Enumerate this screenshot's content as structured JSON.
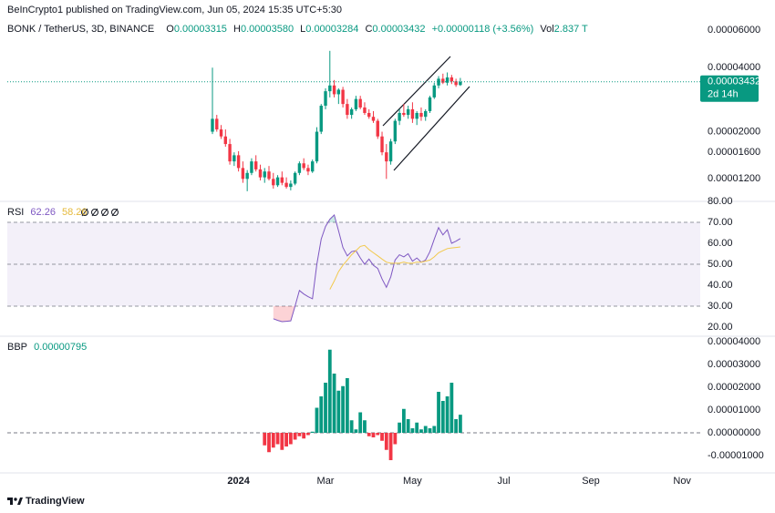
{
  "header": "BeInCrypto1 published on TradingView.com, Jun 05, 2024 15:35 UTC+5:30",
  "footer": "TradingView",
  "chart_data": [
    {
      "type": "candlestick",
      "symbol": "BONK / TetherUS, 3D, BINANCE",
      "ohlc_labels": [
        "O",
        "H",
        "L",
        "C"
      ],
      "ohlc_value_labels": [
        "0.00003315",
        "0.00003580",
        "0.00003284",
        "0.00003432"
      ],
      "change": "+0.00000118 (+3.56%)",
      "volume_label": "Vol",
      "volume": "2.837 T",
      "countdown": "2d 14h",
      "categories": [
        null,
        null,
        null,
        null,
        null,
        null,
        "2024",
        null,
        null,
        null,
        null,
        null,
        null,
        null,
        null,
        null,
        null,
        null,
        null,
        null,
        null,
        null,
        null,
        null,
        null,
        null,
        "Mar",
        null,
        null,
        null,
        null,
        null,
        null,
        null,
        null,
        null,
        null,
        null,
        null,
        null,
        null,
        null,
        null,
        null,
        null,
        null,
        "May",
        null,
        null,
        null,
        null,
        null,
        null,
        null,
        null,
        null,
        null,
        null,
        null,
        null,
        null,
        null,
        null,
        null,
        null,
        null,
        null,
        "Jul",
        null,
        null,
        null,
        null,
        null,
        null,
        null,
        null,
        null,
        null,
        null,
        null,
        null,
        null,
        null,
        null,
        null,
        null,
        null,
        "Sep",
        null,
        null,
        null,
        null,
        null,
        null,
        null,
        null,
        null,
        null,
        null,
        null,
        null,
        null,
        null,
        null,
        null,
        null,
        null,
        null,
        "Nov",
        null,
        null,
        null
      ],
      "open": [
        2e-05,
        2.3e-05,
        2.05e-05,
        1.9e-05,
        1.75e-05,
        1.45e-05,
        1.55e-05,
        1.35e-05,
        1.2e-05,
        1.28e-05,
        1.45e-05,
        1.33e-05,
        1.22e-05,
        1.3e-05,
        1.2e-05,
        1.12e-05,
        1.22e-05,
        1.15e-05,
        1.1e-05,
        1.14e-05,
        1.28e-05,
        1.42e-05,
        1.35e-05,
        1.3e-05,
        1.45e-05,
        2e-05,
        2.65e-05,
        3.1e-05,
        3.3e-05,
        3e-05,
        3.15e-05,
        2.7e-05,
        2.4e-05,
        2.55e-05,
        2.85e-05,
        2.6e-05,
        2.45e-05,
        2.35e-05,
        2.25e-05,
        1.9e-05,
        1.6e-05,
        1.45e-05,
        1.8e-05,
        2.25e-05,
        2.45e-05,
        2.4e-05,
        2.55e-05,
        2.3e-05,
        2.45e-05,
        2.35e-05,
        2.5e-05,
        2.9e-05,
        3.3e-05,
        3.55e-05,
        3.4e-05,
        3.6e-05,
        3.45e-05,
        3.315e-05,
        null,
        null,
        null,
        null,
        null,
        null,
        null,
        null,
        null,
        null,
        null,
        null,
        null,
        null,
        null,
        null,
        null,
        null,
        null,
        null,
        null,
        null,
        null,
        null,
        null,
        null,
        null,
        null,
        null,
        null,
        null,
        null,
        null,
        null,
        null,
        null,
        null,
        null,
        null,
        null,
        null,
        null,
        null,
        null,
        null,
        null,
        null,
        null,
        null,
        null,
        null,
        null,
        null,
        null
      ],
      "high": [
        4e-05,
        2.4e-05,
        2.15e-05,
        2.05e-05,
        1.85e-05,
        1.6e-05,
        1.62e-05,
        1.45e-05,
        1.32e-05,
        1.5e-05,
        1.55e-05,
        1.4e-05,
        1.35e-05,
        1.38e-05,
        1.28e-05,
        1.25e-05,
        1.3e-05,
        1.22e-05,
        1.18e-05,
        1.3e-05,
        1.45e-05,
        1.5e-05,
        1.4e-05,
        1.48e-05,
        2.1e-05,
        2.7e-05,
        3.2e-05,
        4.8e-05,
        3.5e-05,
        3.2e-05,
        3.25e-05,
        2.85e-05,
        2.6e-05,
        2.95e-05,
        2.95e-05,
        2.75e-05,
        2.55e-05,
        2.5e-05,
        2.3e-05,
        2e-05,
        1.75e-05,
        1.85e-05,
        2.3e-05,
        2.55e-05,
        2.7e-05,
        2.65e-05,
        2.75e-05,
        2.5e-05,
        2.6e-05,
        2.55e-05,
        2.95e-05,
        3.4e-05,
        3.65e-05,
        3.75e-05,
        3.8e-05,
        3.7e-05,
        3.55e-05,
        3.58e-05,
        null,
        null,
        null,
        null,
        null,
        null,
        null,
        null,
        null,
        null,
        null,
        null,
        null,
        null,
        null,
        null,
        null,
        null,
        null,
        null,
        null,
        null,
        null,
        null,
        null,
        null,
        null,
        null,
        null,
        null,
        null,
        null,
        null,
        null,
        null,
        null,
        null,
        null,
        null,
        null,
        null,
        null,
        null,
        null,
        null,
        null,
        null,
        null,
        null,
        null,
        null,
        null,
        null,
        null
      ],
      "low": [
        1.95e-05,
        2e-05,
        1.85e-05,
        1.7e-05,
        1.4e-05,
        1.38e-05,
        1.3e-05,
        1.15e-05,
        1.05e-05,
        1.25e-05,
        1.3e-05,
        1.18e-05,
        1.15e-05,
        1.18e-05,
        1.08e-05,
        1.1e-05,
        1.12e-05,
        1.08e-05,
        1.06e-05,
        1.12e-05,
        1.25e-05,
        1.32e-05,
        1.25e-05,
        1.28e-05,
        1.42e-05,
        1.95e-05,
        2.55e-05,
        2.9e-05,
        2.9e-05,
        2.7e-05,
        2.6e-05,
        2.3e-05,
        2.3e-05,
        2.5e-05,
        2.55e-05,
        2.4e-05,
        2.3e-05,
        2.2e-05,
        1.85e-05,
        1.55e-05,
        1.2e-05,
        1.4e-05,
        1.75e-05,
        2.15e-05,
        2.35e-05,
        2.3e-05,
        2.2e-05,
        2.15e-05,
        2.25e-05,
        2.25e-05,
        2.45e-05,
        2.85e-05,
        3.2e-05,
        3.35e-05,
        3.3e-05,
        3.35e-05,
        3.25e-05,
        3.284e-05,
        null,
        null,
        null,
        null,
        null,
        null,
        null,
        null,
        null,
        null,
        null,
        null,
        null,
        null,
        null,
        null,
        null,
        null,
        null,
        null,
        null,
        null,
        null,
        null,
        null,
        null,
        null,
        null,
        null,
        null,
        null,
        null,
        null,
        null,
        null,
        null,
        null,
        null,
        null,
        null,
        null,
        null,
        null,
        null,
        null,
        null,
        null,
        null,
        null,
        null,
        null,
        null,
        null,
        null
      ],
      "close": [
        2.3e-05,
        2.05e-05,
        1.9e-05,
        1.75e-05,
        1.45e-05,
        1.55e-05,
        1.35e-05,
        1.2e-05,
        1.28e-05,
        1.45e-05,
        1.33e-05,
        1.22e-05,
        1.3e-05,
        1.2e-05,
        1.12e-05,
        1.22e-05,
        1.15e-05,
        1.1e-05,
        1.14e-05,
        1.28e-05,
        1.42e-05,
        1.35e-05,
        1.3e-05,
        1.45e-05,
        2e-05,
        2.65e-05,
        3.1e-05,
        3.3e-05,
        3e-05,
        3.15e-05,
        2.7e-05,
        2.4e-05,
        2.55e-05,
        2.85e-05,
        2.6e-05,
        2.45e-05,
        2.35e-05,
        2.25e-05,
        1.9e-05,
        1.6e-05,
        1.45e-05,
        1.8e-05,
        2.25e-05,
        2.45e-05,
        2.4e-05,
        2.55e-05,
        2.3e-05,
        2.45e-05,
        2.35e-05,
        2.5e-05,
        2.9e-05,
        3.3e-05,
        3.55e-05,
        3.4e-05,
        3.6e-05,
        3.45e-05,
        3.315e-05,
        3.432e-05,
        null,
        null,
        null,
        null,
        null,
        null,
        null,
        null,
        null,
        null,
        null,
        null,
        null,
        null,
        null,
        null,
        null,
        null,
        null,
        null,
        null,
        null,
        null,
        null,
        null,
        null,
        null,
        null,
        null,
        null,
        null,
        null,
        null,
        null,
        null,
        null,
        null,
        null,
        null,
        null,
        null,
        null,
        null,
        null,
        null,
        null,
        null,
        null,
        null,
        null,
        null,
        null,
        null,
        null
      ],
      "log_scale": true,
      "ylim": [
        9.5e-06,
        6.7e-05
      ],
      "yticks": [
        {
          "value": 1.2e-05,
          "label": "0.00001200"
        },
        {
          "value": 1.6e-05,
          "label": "0.00001600"
        },
        {
          "value": 2e-05,
          "label": "0.00002000"
        },
        {
          "value": 4e-05,
          "label": "0.00004000"
        },
        {
          "value": 6e-05,
          "label": "0.00006000"
        }
      ],
      "up_color": "#089981",
      "down_color": "#f23645"
    },
    {
      "type": "line",
      "title": "RSI",
      "series": [
        {
          "color": "#7e57c2",
          "values": [
            null,
            null,
            null,
            null,
            null,
            null,
            null,
            null,
            null,
            null,
            null,
            null,
            null,
            null,
            24,
            23.2,
            22.6,
            22.8,
            23,
            30,
            37.5,
            35.8,
            34.5,
            33.5,
            50,
            62,
            68,
            71.5,
            73.5,
            66,
            58,
            54,
            56,
            56.5,
            53,
            50,
            52.5,
            49.5,
            48,
            43,
            39,
            44,
            52,
            54.5,
            53.5,
            55,
            51.5,
            53,
            51,
            52,
            56,
            62,
            67.5,
            64,
            66.5,
            60,
            61,
            62.26,
            null,
            null,
            null,
            null,
            null,
            null,
            null,
            null,
            null,
            null,
            null,
            null,
            null,
            null,
            null,
            null,
            null,
            null,
            null,
            null,
            null,
            null,
            null,
            null,
            null,
            null,
            null,
            null,
            null,
            null,
            null,
            null,
            null,
            null,
            null,
            null,
            null,
            null,
            null,
            null,
            null,
            null,
            null,
            null,
            null,
            null,
            null,
            null,
            null,
            null,
            null,
            null,
            null,
            null
          ]
        },
        {
          "color": "#f2c94c",
          "values": [
            null,
            null,
            null,
            null,
            null,
            null,
            null,
            null,
            null,
            null,
            null,
            null,
            null,
            null,
            null,
            null,
            null,
            null,
            null,
            null,
            null,
            null,
            null,
            null,
            null,
            null,
            null,
            38,
            42,
            46.5,
            49.5,
            52,
            54.5,
            56.5,
            58.5,
            59,
            57,
            55.5,
            54,
            52.5,
            51,
            50.5,
            50.5,
            50.5,
            51,
            50.5,
            50.5,
            51,
            51,
            51.5,
            52,
            53.5,
            55.5,
            56.5,
            57.5,
            57.8,
            58,
            58.26,
            null,
            null,
            null,
            null,
            null,
            null,
            null,
            null,
            null,
            null,
            null,
            null,
            null,
            null,
            null,
            null,
            null,
            null,
            null,
            null,
            null,
            null,
            null,
            null,
            null,
            null,
            null,
            null,
            null,
            null,
            null,
            null,
            null,
            null,
            null,
            null,
            null,
            null,
            null,
            null,
            null,
            null,
            null,
            null,
            null,
            null,
            null,
            null,
            null,
            null,
            null,
            null,
            null,
            null
          ]
        }
      ],
      "ylim": [
        16,
        80
      ],
      "yticks": [
        {
          "value": 20,
          "label": "20.00"
        },
        {
          "value": 30,
          "label": "30.00"
        },
        {
          "value": 40,
          "label": "40.00"
        },
        {
          "value": 50,
          "label": "50.00"
        },
        {
          "value": 60,
          "label": "60.00"
        },
        {
          "value": 70,
          "label": "70.00"
        },
        {
          "value": 80,
          "label": "80.00"
        }
      ],
      "band": [
        30,
        70
      ],
      "band_color": "#7e57c2",
      "levels": [
        70,
        50,
        30
      ],
      "fills": [
        {
          "level": 70,
          "side": "above",
          "color": "#089981"
        },
        {
          "level": 30,
          "side": "below",
          "color": "#f23645"
        }
      ]
    },
    {
      "type": "bar",
      "title": "BBP",
      "values": [
        null,
        null,
        null,
        null,
        null,
        null,
        null,
        null,
        null,
        null,
        null,
        null,
        -5.5e-06,
        -8.5e-06,
        -6.5e-06,
        -5e-06,
        -7.5e-06,
        -6e-06,
        -5e-06,
        -3e-06,
        -1.5e-06,
        -2.5e-06,
        -1e-06,
        5e-07,
        1.1e-05,
        1.6e-05,
        2.2e-05,
        3.65e-05,
        2.6e-05,
        1.85e-05,
        2.05e-05,
        2.4e-05,
        5.5e-06,
        1.5e-06,
        9e-06,
        5.5e-06,
        -1.5e-06,
        -2e-06,
        -1e-06,
        -3.5e-06,
        -7.5e-06,
        -1.2e-05,
        -5e-06,
        4.5e-06,
        1.05e-05,
        6e-06,
        2e-06,
        4.5e-06,
        1.5e-06,
        3e-06,
        2e-06,
        3e-06,
        1.8e-05,
        1.4e-05,
        1.6e-05,
        2.2e-05,
        6e-06,
        7.95e-06,
        null,
        null,
        null,
        null,
        null,
        null,
        null,
        null,
        null,
        null,
        null,
        null,
        null,
        null,
        null,
        null,
        null,
        null,
        null,
        null,
        null,
        null,
        null,
        null,
        null,
        null,
        null,
        null,
        null,
        null,
        null,
        null,
        null,
        null,
        null,
        null,
        null,
        null,
        null,
        null,
        null,
        null,
        null,
        null,
        null,
        null,
        null,
        null,
        null,
        null,
        null,
        null,
        null,
        null
      ],
      "ylim": [
        -1.72e-05,
        4.2e-05
      ],
      "yticks": [
        {
          "value": -1e-05,
          "label": "-0.00001000"
        },
        {
          "value": 0,
          "label": "0.00000000"
        },
        {
          "value": 1e-05,
          "label": "0.00001000"
        },
        {
          "value": 2e-05,
          "label": "0.00002000"
        },
        {
          "value": 3e-05,
          "label": "0.00003000"
        },
        {
          "value": 4e-05,
          "label": "0.00004000"
        }
      ],
      "zero_line": true,
      "up_color": "#089981",
      "down_color": "#f23645"
    }
  ]
}
